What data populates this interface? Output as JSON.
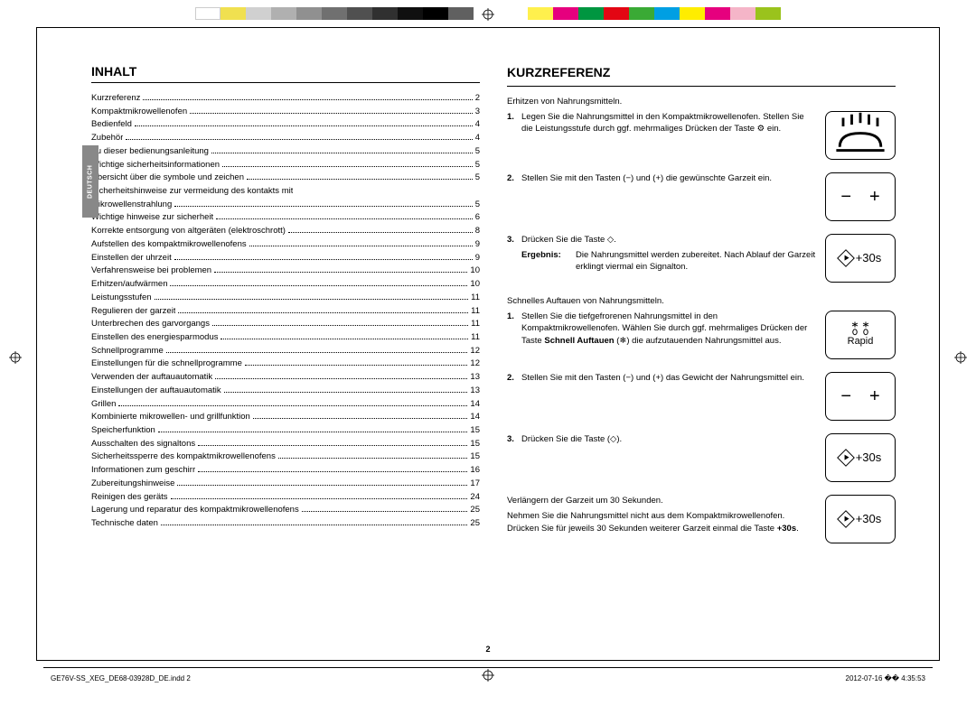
{
  "colorbar_top": [
    "#ffffff",
    "#fff04d",
    "#d0d0d0",
    "#b0b0b0",
    "#909090",
    "#707070",
    "#505050",
    "#303030",
    "#101010",
    "#000000",
    "#606060"
  ],
  "colorbar_right": [
    "#fff04d",
    "#e6007e",
    "#009640",
    "#e30613",
    "#3aaa35",
    "#009fe3",
    "#ffed00",
    "#e6007e",
    "#f5b5c8",
    "#9ac31c"
  ],
  "lang_tab": "DEUTSCH",
  "section_left": "Inhalt",
  "section_right": "Kurzreferenz",
  "toc": [
    {
      "label": "Kurzreferenz",
      "page": "2"
    },
    {
      "label": "Kompaktmikrowellenofen",
      "page": "3"
    },
    {
      "label": "Bedienfeld",
      "page": "4"
    },
    {
      "label": "Zubehör",
      "page": "4"
    },
    {
      "label": "Zu dieser bedienungsanleitung",
      "page": "5"
    },
    {
      "label": "Wichtige sicherheitsinformationen",
      "page": "5"
    },
    {
      "label": "Übersicht über die symbole und zeichen",
      "page": "5"
    },
    {
      "label": "Sicherheitshinweise zur vermeidung des kontakts mit",
      "page": ""
    },
    {
      "label": "mikrowellenstrahlung",
      "page": "5"
    },
    {
      "label": "Wichtige hinweise zur sicherheit",
      "page": "6"
    },
    {
      "label": "Korrekte entsorgung von altgeräten (elektroschrott)",
      "page": "8"
    },
    {
      "label": "Aufstellen des kompaktmikrowellenofens",
      "page": "9"
    },
    {
      "label": "Einstellen der uhrzeit",
      "page": "9"
    },
    {
      "label": "Verfahrensweise bei problemen",
      "page": "10"
    },
    {
      "label": "Erhitzen/aufwärmen",
      "page": "10"
    },
    {
      "label": "Leistungsstufen",
      "page": "11"
    },
    {
      "label": "Regulieren der garzeit",
      "page": "11"
    },
    {
      "label": "Unterbrechen des garvorgangs",
      "page": "11"
    },
    {
      "label": "Einstellen des energiesparmodus",
      "page": "11"
    },
    {
      "label": "Schnellprogramme",
      "page": "12"
    },
    {
      "label": "Einstellungen für die schnellprogramme",
      "page": "12"
    },
    {
      "label": "Verwenden der auftauautomatik",
      "page": "13"
    },
    {
      "label": "Einstellungen der auftauautomatik",
      "page": "13"
    },
    {
      "label": "Grillen",
      "page": "14"
    },
    {
      "label": "Kombinierte mikrowellen- und grillfunktion",
      "page": "14"
    },
    {
      "label": "Speicherfunktion",
      "page": "15"
    },
    {
      "label": "Ausschalten des signaltons",
      "page": "15"
    },
    {
      "label": "Sicherheitssperre des kompaktmikrowellenofens",
      "page": "15"
    },
    {
      "label": "Informationen zum geschirr",
      "page": "16"
    },
    {
      "label": "Zubereitungshinweise",
      "page": "17"
    },
    {
      "label": "Reinigen des geräts",
      "page": "24"
    },
    {
      "label": "Lagerung und reparatur des kompaktmikrowellenofens",
      "page": "25"
    },
    {
      "label": "Technische daten",
      "page": "25"
    }
  ],
  "kurz": {
    "heat_title": "Erhitzen von Nahrungsmitteln.",
    "heat_steps": [
      "Legen Sie die Nahrungsmittel in den Kompaktmikrowellenofen. Stellen Sie die Leistungsstufe durch ggf. mehrmaliges Drücken der Taste ⚙ ein.",
      "Stellen Sie mit den Tasten (−) und (+) die gewünschte Garzeit ein.",
      "Drücken Sie die Taste ◇."
    ],
    "ergebnis_label": "Ergebnis:",
    "ergebnis_text": "Die Nahrungsmittel werden zubereitet. Nach Ablauf der Garzeit erklingt viermal ein Signalton.",
    "defrost_title": "Schnelles Auftauen von Nahrungsmitteln.",
    "defrost_steps": [
      "Stellen Sie die tiefgefrorenen Nahrungsmittel in den Kompaktmikrowellenofen. Wählen Sie durch ggf. mehrmaliges Drücken der Taste <b>Schnell Auftauen</b> (❄) die aufzutauenden Nahrungsmittel aus.",
      "Stellen Sie mit den Tasten (−) und (+) das Gewicht der Nahrungsmittel ein.",
      "Drücken Sie die Taste (◇)."
    ],
    "extend_title": "Verlängern der Garzeit um 30 Sekunden.",
    "extend_text": "Nehmen Sie die Nahrungsmittel nicht aus dem Kompaktmikrowellenofen. Drücken Sie für jeweils 30 Sekunden weiterer Garzeit einmal die Taste <b>+30s</b>.",
    "btn_30s": "+30s",
    "rapid_label": "Rapid"
  },
  "page_number": "2",
  "footer_left": "GE76V-SS_XEG_DE68-03928D_DE.indd   2",
  "footer_right": "2012-07-16   �� 4:35:53"
}
